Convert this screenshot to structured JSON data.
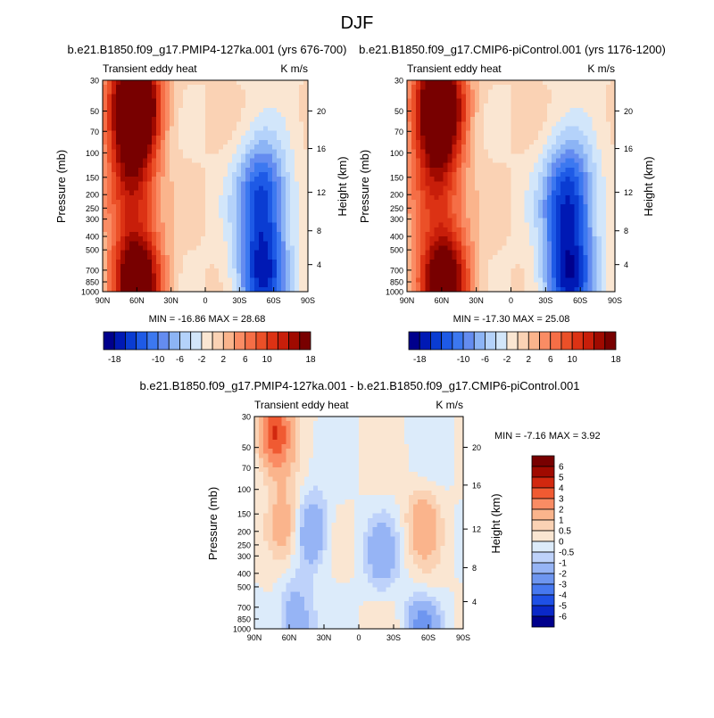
{
  "figure": {
    "title": "DJF"
  },
  "chart_data": [
    {
      "type": "heatmap",
      "panel": "top-left",
      "title": "b.e21.B1850.f09_g17.PMIP4-127ka.001 (yrs 676-700)",
      "subtitle_left": "Transient eddy heat",
      "subtitle_right": "K m/s",
      "ylabel": "Pressure (mb)",
      "ylabel_right": "Height (km)",
      "x_ticks": [
        "90N",
        "60N",
        "30N",
        "0",
        "30S",
        "60S",
        "90S"
      ],
      "y_ticks": [
        "30",
        "50",
        "70",
        "100",
        "150",
        "200",
        "250",
        "300",
        "400",
        "500",
        "700",
        "850",
        "1000"
      ],
      "y_right_ticks": [
        "20",
        "16",
        "12",
        "8",
        "4"
      ],
      "y_log_scale": true,
      "ylim": [
        1000,
        30
      ],
      "xlim": [
        90,
        -90
      ],
      "stats": "MIN = -16.86  MAX = 28.68",
      "features": [
        {
          "lat": 62,
          "p": 45,
          "value": 28
        },
        {
          "lat": 65,
          "p": 170,
          "value": 12
        },
        {
          "lat": 60,
          "p": 860,
          "value": 22
        },
        {
          "lat": -50,
          "p": 200,
          "value": -14
        },
        {
          "lat": -50,
          "p": 780,
          "value": -15
        }
      ]
    },
    {
      "type": "heatmap",
      "panel": "top-right",
      "title": "b.e21.B1850.f09_g17.CMIP6-piControl.001 (yrs 1176-1200)",
      "subtitle_left": "Transient eddy heat",
      "subtitle_right": "K m/s",
      "ylabel": "Pressure (mb)",
      "ylabel_right": "Height (km)",
      "x_ticks": [
        "90N",
        "60N",
        "30N",
        "0",
        "30S",
        "60S",
        "90S"
      ],
      "y_ticks": [
        "30",
        "50",
        "70",
        "100",
        "150",
        "200",
        "250",
        "300",
        "400",
        "500",
        "700",
        "850",
        "1000"
      ],
      "y_right_ticks": [
        "20",
        "16",
        "12",
        "8",
        "4"
      ],
      "y_log_scale": true,
      "ylim": [
        1000,
        30
      ],
      "xlim": [
        90,
        -90
      ],
      "stats": "MIN = -17.30  MAX = 25.08",
      "features": [
        {
          "lat": 62,
          "p": 45,
          "value": 25
        },
        {
          "lat": 65,
          "p": 170,
          "value": 11
        },
        {
          "lat": 58,
          "p": 860,
          "value": 21
        },
        {
          "lat": -50,
          "p": 200,
          "value": -15
        },
        {
          "lat": -50,
          "p": 780,
          "value": -16
        }
      ]
    },
    {
      "type": "heatmap",
      "panel": "bottom",
      "title": "b.e21.B1850.f09_g17.PMIP4-127ka.001 - b.e21.B1850.f09_g17.CMIP6-piControl.001",
      "subtitle_left": "Transient eddy heat",
      "subtitle_right": "K m/s",
      "ylabel": "Pressure (mb)",
      "ylabel_right": "Height (km)",
      "x_ticks": [
        "90N",
        "60N",
        "30N",
        "0",
        "30S",
        "60S",
        "90S"
      ],
      "y_ticks": [
        "30",
        "50",
        "70",
        "100",
        "150",
        "200",
        "250",
        "300",
        "400",
        "500",
        "700",
        "850",
        "1000"
      ],
      "y_right_ticks": [
        "20",
        "16",
        "12",
        "8",
        "4"
      ],
      "y_log_scale": true,
      "ylim": [
        1000,
        30
      ],
      "xlim": [
        90,
        -90
      ],
      "stats": "MIN =  -7.16  MAX =   3.92",
      "features": [
        {
          "lat": 72,
          "p": 38,
          "value": 4
        },
        {
          "lat": 65,
          "p": 190,
          "value": 2
        },
        {
          "lat": -55,
          "p": 170,
          "value": 1.5
        },
        {
          "lat": -57,
          "p": 650,
          "value": 1
        },
        {
          "lat": 40,
          "p": 200,
          "value": -2
        },
        {
          "lat": -20,
          "p": 300,
          "value": -1.5
        },
        {
          "lat": 55,
          "p": 850,
          "value": -2
        },
        {
          "lat": -55,
          "p": 950,
          "value": -3
        }
      ]
    }
  ],
  "colorbars": {
    "shared": {
      "orientation": "horizontal",
      "levels": [
        -18,
        -16,
        -14,
        -12,
        -10,
        -8,
        -6,
        -4,
        -2,
        0,
        2,
        4,
        6,
        8,
        10,
        12,
        14,
        16,
        18
      ],
      "labels": [
        "-18",
        "-10",
        "-6",
        "-2",
        "2",
        "6",
        "10",
        "18"
      ],
      "colors": [
        "#00008c",
        "#0019b4",
        "#0a3cd2",
        "#1e5ae6",
        "#3c78f0",
        "#648cf0",
        "#8cb4f5",
        "#b4d2fa",
        "#d2e6fa",
        "#fae6d2",
        "#fad2b4",
        "#fab48c",
        "#fa8c64",
        "#f56e46",
        "#eb5028",
        "#dc3214",
        "#c81e0a",
        "#a00a00",
        "#780000"
      ]
    },
    "diff": {
      "orientation": "vertical",
      "levels": [
        -6,
        -5,
        -4,
        -3,
        -2,
        -1,
        -0.5,
        0,
        0.5,
        1,
        2,
        3,
        4,
        5,
        6
      ],
      "labels": [
        "6",
        "5",
        "4",
        "3",
        "2",
        "1",
        "0.5",
        "0",
        "-0.5",
        "-1",
        "-2",
        "-3",
        "-4",
        "-5",
        "-6"
      ],
      "colors": [
        "#00008c",
        "#0a28c8",
        "#1e50e6",
        "#4678f0",
        "#6e96f0",
        "#96b4f5",
        "#bed2fa",
        "#dcebfa",
        "#fae6d2",
        "#fad2b4",
        "#fab48c",
        "#fa8c64",
        "#f05a32",
        "#d2280f",
        "#a00a00",
        "#780000"
      ]
    }
  }
}
